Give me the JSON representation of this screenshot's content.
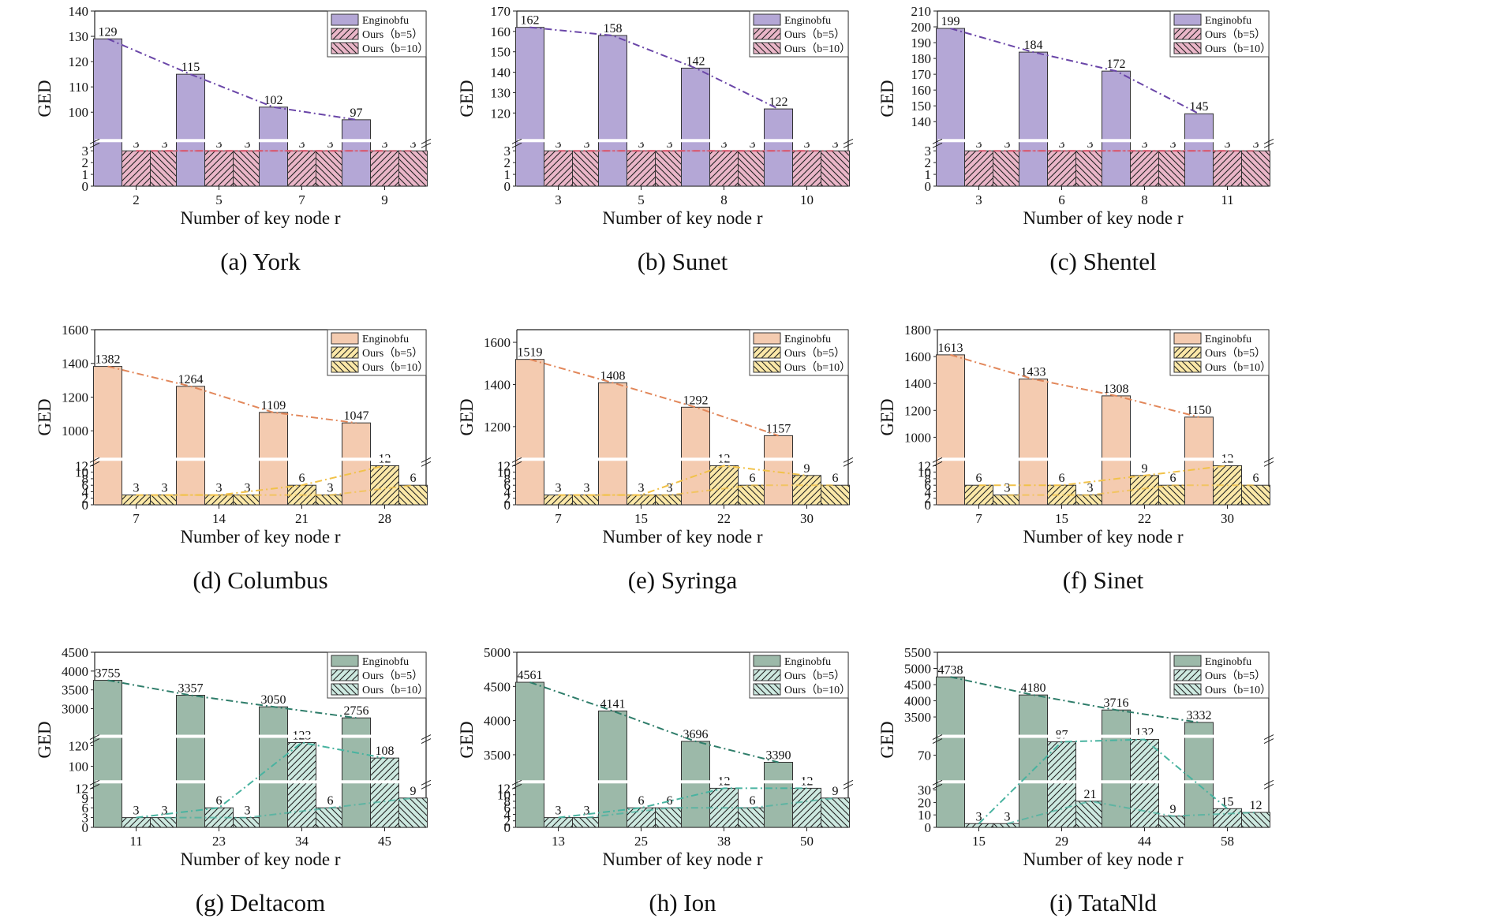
{
  "legend": {
    "base": "Enginobfu",
    "b5": "Ours（b=5）",
    "b10": "Ours（b=10）"
  },
  "colors": {
    "purple": {
      "base": "#b4a7d6",
      "ours": "#eab6c8",
      "line": "#6a46a8",
      "line2": "#d8586f"
    },
    "orange": {
      "base": "#f4cbb0",
      "ours": "#fbe8a8",
      "line": "#e2875a",
      "line2": "#f1c24a"
    },
    "green": {
      "base": "#9cb9a9",
      "ours": "#cde9e0",
      "line": "#2e7d6a",
      "line2": "#49b3a0"
    }
  },
  "chart_data": [
    {
      "type": "bar",
      "caption": "(a)  York",
      "theme": "purple",
      "xlabel": "Number of key node r",
      "ylabel": "GED",
      "categories": [
        "2",
        "5",
        "7",
        "9"
      ],
      "series": [
        {
          "name": "Enginobfu",
          "values": [
            129,
            115,
            102,
            97
          ]
        },
        {
          "name": "Ours（b=5）",
          "values": [
            3,
            3,
            3,
            3
          ]
        },
        {
          "name": "Ours（b=10）",
          "values": [
            3,
            3,
            3,
            3
          ]
        }
      ],
      "segments": [
        {
          "range": [
            0,
            3.6
          ],
          "ticks": [
            0,
            1,
            2,
            3
          ]
        },
        {
          "range": [
            90,
            140
          ],
          "ticks": [
            100,
            110,
            120,
            130,
            140
          ]
        }
      ]
    },
    {
      "type": "bar",
      "caption": "(b)  Sunet",
      "theme": "purple",
      "xlabel": "Number of key node r",
      "ylabel": "GED",
      "categories": [
        "3",
        "5",
        "8",
        "10"
      ],
      "series": [
        {
          "name": "Enginobfu",
          "values": [
            162,
            158,
            142,
            122
          ]
        },
        {
          "name": "Ours（b=5）",
          "values": [
            3,
            3,
            3,
            3
          ]
        },
        {
          "name": "Ours（b=10）",
          "values": [
            3,
            3,
            3,
            3
          ]
        }
      ],
      "segments": [
        {
          "range": [
            0,
            3.6
          ],
          "ticks": [
            0,
            1,
            2,
            3
          ]
        },
        {
          "range": [
            108,
            170
          ],
          "ticks": [
            120,
            130,
            140,
            150,
            160,
            170
          ]
        }
      ]
    },
    {
      "type": "bar",
      "caption": "(c)  Shentel",
      "theme": "purple",
      "xlabel": "Number of key node r",
      "ylabel": "GED",
      "categories": [
        "3",
        "6",
        "8",
        "11"
      ],
      "series": [
        {
          "name": "Enginobfu",
          "values": [
            199,
            184,
            172,
            145
          ]
        },
        {
          "name": "Ours（b=5）",
          "values": [
            3,
            3,
            3,
            3
          ]
        },
        {
          "name": "Ours（b=10）",
          "values": [
            3,
            3,
            3,
            3
          ]
        }
      ],
      "segments": [
        {
          "range": [
            0,
            3.6
          ],
          "ticks": [
            0,
            1,
            2,
            3
          ]
        },
        {
          "range": [
            130,
            210
          ],
          "ticks": [
            140,
            150,
            160,
            170,
            180,
            190,
            200,
            210
          ]
        }
      ]
    },
    {
      "type": "bar",
      "caption": "(d)  Columbus",
      "theme": "orange",
      "xlabel": "Number of key node r",
      "ylabel": "GED",
      "categories": [
        "7",
        "14",
        "21",
        "28"
      ],
      "series": [
        {
          "name": "Enginobfu",
          "values": [
            1382,
            1264,
            1109,
            1047
          ]
        },
        {
          "name": "Ours（b=5）",
          "values": [
            3,
            3,
            6,
            12
          ]
        },
        {
          "name": "Ours（b=10）",
          "values": [
            3,
            3,
            3,
            6
          ]
        }
      ],
      "segments": [
        {
          "range": [
            0,
            13
          ],
          "ticks": [
            0,
            2,
            4,
            6,
            8,
            10,
            12
          ]
        },
        {
          "range": [
            850,
            1600
          ],
          "ticks": [
            1000,
            1200,
            1400,
            1600
          ]
        }
      ]
    },
    {
      "type": "bar",
      "caption": "(e)  Syringa",
      "theme": "orange",
      "xlabel": "Number of key node r",
      "ylabel": "GED",
      "categories": [
        "7",
        "15",
        "22",
        "30"
      ],
      "series": [
        {
          "name": "Enginobfu",
          "values": [
            1519,
            1408,
            1292,
            1157
          ]
        },
        {
          "name": "Ours（b=5）",
          "values": [
            3,
            3,
            12,
            9
          ]
        },
        {
          "name": "Ours（b=10）",
          "values": [
            3,
            3,
            6,
            6
          ]
        }
      ],
      "segments": [
        {
          "range": [
            0,
            13
          ],
          "ticks": [
            0,
            2,
            4,
            6,
            8,
            10,
            12
          ]
        },
        {
          "range": [
            1060,
            1660
          ],
          "ticks": [
            1200,
            1400,
            1600
          ]
        }
      ]
    },
    {
      "type": "bar",
      "caption": "(f)  Sinet",
      "theme": "orange",
      "xlabel": "Number of key node r",
      "ylabel": "GED",
      "categories": [
        "7",
        "15",
        "22",
        "30"
      ],
      "series": [
        {
          "name": "Enginobfu",
          "values": [
            1613,
            1433,
            1308,
            1150
          ]
        },
        {
          "name": "Ours（b=5）",
          "values": [
            6,
            6,
            9,
            12
          ]
        },
        {
          "name": "Ours（b=10）",
          "values": [
            3,
            3,
            6,
            6
          ]
        }
      ],
      "segments": [
        {
          "range": [
            0,
            13
          ],
          "ticks": [
            0,
            2,
            4,
            6,
            8,
            10,
            12
          ]
        },
        {
          "range": [
            860,
            1800
          ],
          "ticks": [
            1000,
            1200,
            1400,
            1600,
            1800
          ]
        }
      ]
    },
    {
      "type": "bar",
      "caption": "(g)  Deltacom",
      "theme": "green",
      "xlabel": "Number of key node r",
      "ylabel": "GED",
      "categories": [
        "11",
        "23",
        "34",
        "45"
      ],
      "series": [
        {
          "name": "Enginobfu",
          "values": [
            3755,
            3357,
            3050,
            2756
          ]
        },
        {
          "name": "Ours（b=5）",
          "values": [
            3,
            6,
            123,
            108
          ]
        },
        {
          "name": "Ours（b=10）",
          "values": [
            3,
            3,
            6,
            9
          ]
        }
      ],
      "segments": [
        {
          "range": [
            0,
            13
          ],
          "ticks": [
            0,
            3,
            6,
            9,
            12
          ]
        },
        {
          "range": [
            88,
            126
          ],
          "ticks": [
            100,
            120
          ]
        },
        {
          "range": [
            2350,
            4500
          ],
          "ticks": [
            3000,
            3500,
            4000,
            4500
          ]
        }
      ]
    },
    {
      "type": "bar",
      "caption": "(h)  Ion",
      "theme": "green",
      "xlabel": "Number of key node r",
      "ylabel": "GED",
      "categories": [
        "13",
        "25",
        "38",
        "50"
      ],
      "series": [
        {
          "name": "Enginobfu",
          "values": [
            4561,
            4141,
            3696,
            3390
          ]
        },
        {
          "name": "Ours（b=5）",
          "values": [
            3,
            6,
            12,
            12
          ]
        },
        {
          "name": "Ours（b=10）",
          "values": [
            3,
            6,
            6,
            9
          ]
        }
      ],
      "segments": [
        {
          "range": [
            0,
            13
          ],
          "ticks": [
            0,
            2,
            4,
            6,
            8,
            10,
            12
          ]
        },
        {
          "range": [
            3150,
            5000
          ],
          "ticks": [
            3500,
            4000,
            4500,
            5000
          ]
        }
      ]
    },
    {
      "type": "bar",
      "caption": "(i)  TataNld",
      "theme": "green",
      "xlabel": "Number of key node r",
      "ylabel": "GED",
      "categories": [
        "15",
        "29",
        "44",
        "58"
      ],
      "series": [
        {
          "name": "Enginobfu",
          "values": [
            4738,
            4180,
            3716,
            3332
          ]
        },
        {
          "name": "Ours（b=5）",
          "values": [
            3,
            87,
            132,
            15
          ]
        },
        {
          "name": "Ours（b=10）",
          "values": [
            3,
            21,
            9,
            12
          ]
        }
      ],
      "segments": [
        {
          "range": [
            0,
            34
          ],
          "ticks": [
            0,
            10,
            20,
            30
          ]
        },
        {
          "range": [
            40,
            90
          ],
          "ticks": [
            70
          ]
        },
        {
          "range": [
            3000,
            5500
          ],
          "ticks": [
            3500,
            4000,
            4500,
            5000,
            5500
          ]
        }
      ]
    }
  ]
}
